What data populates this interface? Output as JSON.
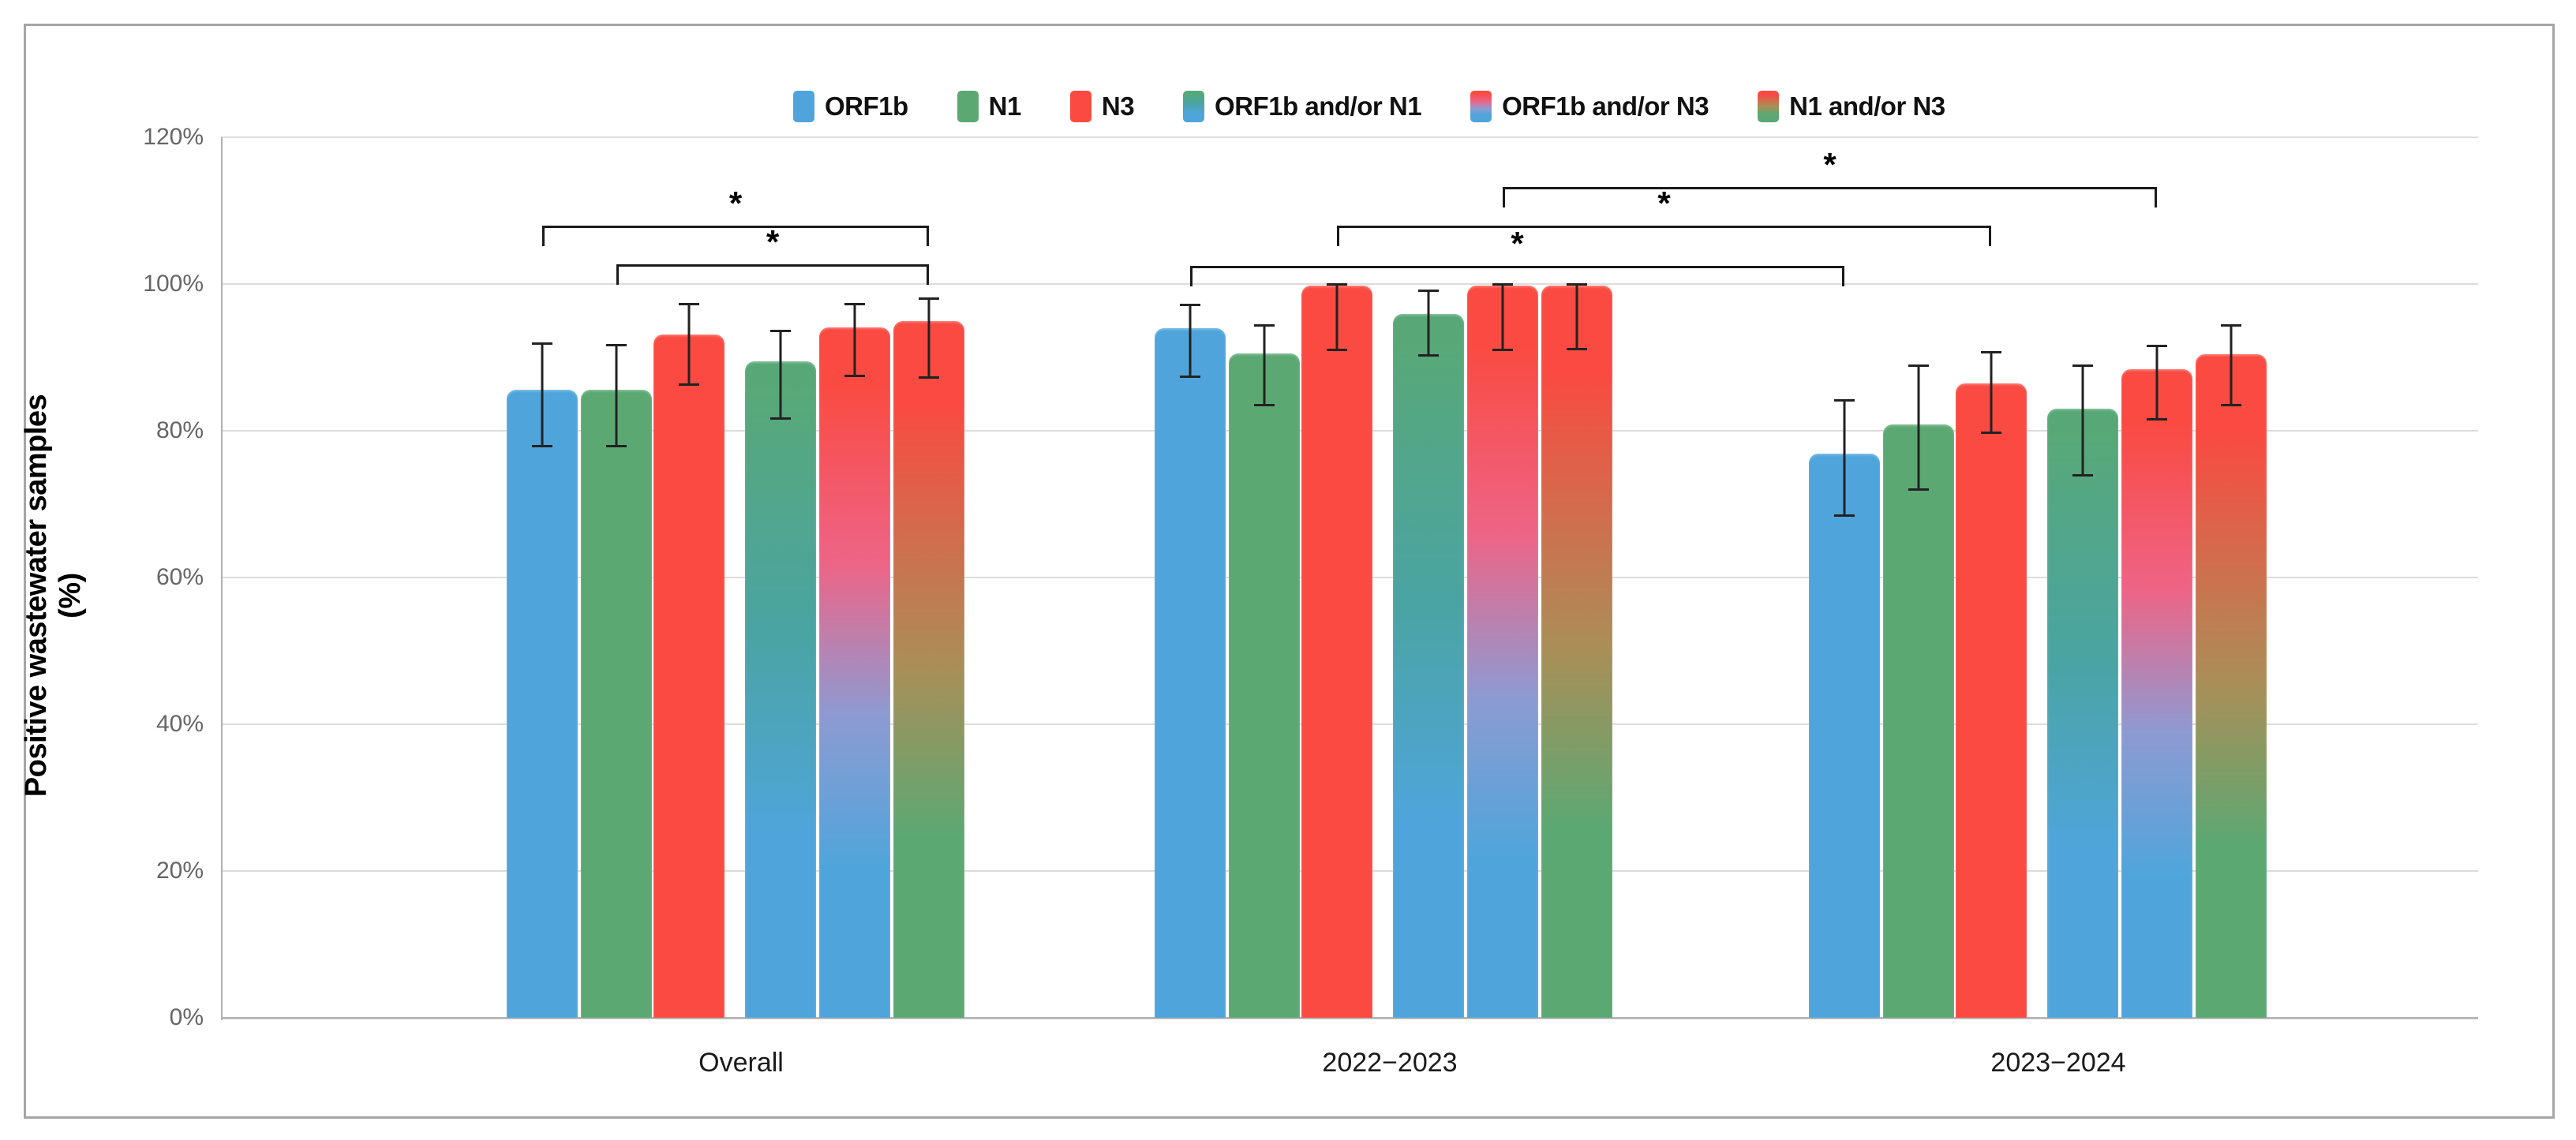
{
  "chart_data": {
    "type": "bar",
    "title": "",
    "ylabel": "Positive wastewater samples (%)",
    "xlabel": "",
    "ylim": [
      0,
      120
    ],
    "ytick_step": 20,
    "yticks": [
      "0%",
      "20%",
      "40%",
      "60%",
      "80%",
      "100%",
      "120%"
    ],
    "grid": true,
    "legend_position": "top",
    "categories": [
      "Overall",
      "2022−2023",
      "2023−2024"
    ],
    "series": [
      {
        "name": "ORF1b",
        "fill": {
          "type": "solid",
          "color": "#4fa5db"
        },
        "values": [
          85.6,
          94.0,
          76.9
        ],
        "err_low": [
          78.0,
          87.4,
          68.5
        ],
        "err_high": [
          91.9,
          97.2,
          84.2
        ]
      },
      {
        "name": "N1",
        "fill": {
          "type": "solid",
          "color": "#5ca873"
        },
        "values": [
          85.6,
          90.5,
          80.9
        ],
        "err_low": [
          78.0,
          83.5,
          72.0
        ],
        "err_high": [
          91.7,
          94.4,
          88.9
        ]
      },
      {
        "name": "N3",
        "fill": {
          "type": "solid",
          "color": "#fa4a41"
        },
        "values": [
          93.1,
          99.8,
          86.5
        ],
        "err_low": [
          86.3,
          91.1,
          79.8
        ],
        "err_high": [
          97.3,
          100.0,
          90.8
        ]
      },
      {
        "name": "ORF1b and/or N1",
        "fill": {
          "type": "gradient",
          "stops": [
            [
              "#58a877",
              "4%"
            ],
            [
              "#4aa4a4",
              "42%"
            ],
            [
              "#4fa5db",
              "72%"
            ]
          ]
        },
        "values": [
          89.5,
          95.9,
          83.0
        ],
        "err_low": [
          81.7,
          90.3,
          74.0
        ],
        "err_high": [
          93.7,
          99.1,
          88.9
        ]
      },
      {
        "name": "ORF1b and/or N3",
        "fill": {
          "type": "gradient",
          "stops": [
            [
              "#fa4a41",
              "8%"
            ],
            [
              "#ee6486",
              "34%"
            ],
            [
              "#8e9ad2",
              "56%"
            ],
            [
              "#4fa5db",
              "78%"
            ]
          ]
        },
        "values": [
          94.1,
          99.8,
          88.4
        ],
        "err_low": [
          87.5,
          91.1,
          81.6
        ],
        "err_high": [
          97.3,
          100.0,
          91.6
        ]
      },
      {
        "name": "N1 and/or N3",
        "fill": {
          "type": "gradient",
          "stops": [
            [
              "#fa4a41",
              "12%"
            ],
            [
              "#a98f58",
              "50%"
            ],
            [
              "#5ca873",
              "74%"
            ]
          ]
        },
        "values": [
          94.9,
          99.8,
          90.4
        ],
        "err_low": [
          87.3,
          91.2,
          83.5
        ],
        "err_high": [
          98.1,
          100.0,
          94.4
        ]
      }
    ],
    "significance_brackets": [
      {
        "from": {
          "category": 0,
          "series": 0
        },
        "to": {
          "category": 0,
          "series": 5
        },
        "y": 108.0,
        "label": "*"
      },
      {
        "from": {
          "category": 0,
          "series": 1
        },
        "to": {
          "category": 0,
          "series": 5
        },
        "y": 102.7,
        "label": "*"
      },
      {
        "from": {
          "category": 1,
          "series": 0
        },
        "to": {
          "category": 2,
          "series": 0
        },
        "y": 102.5,
        "label": "*"
      },
      {
        "from": {
          "category": 1,
          "series": 2
        },
        "to": {
          "category": 2,
          "series": 2
        },
        "y": 108.0,
        "label": "*"
      },
      {
        "from": {
          "category": 1,
          "series": 4
        },
        "to": {
          "category": 2,
          "series": 4
        },
        "y": 113.2,
        "label": "*"
      }
    ],
    "error_bar_color": "#222222",
    "gridline_color": "#dcdcdc",
    "axis_color": "#b0b0b0",
    "frame_color": "#a6a6a6"
  }
}
